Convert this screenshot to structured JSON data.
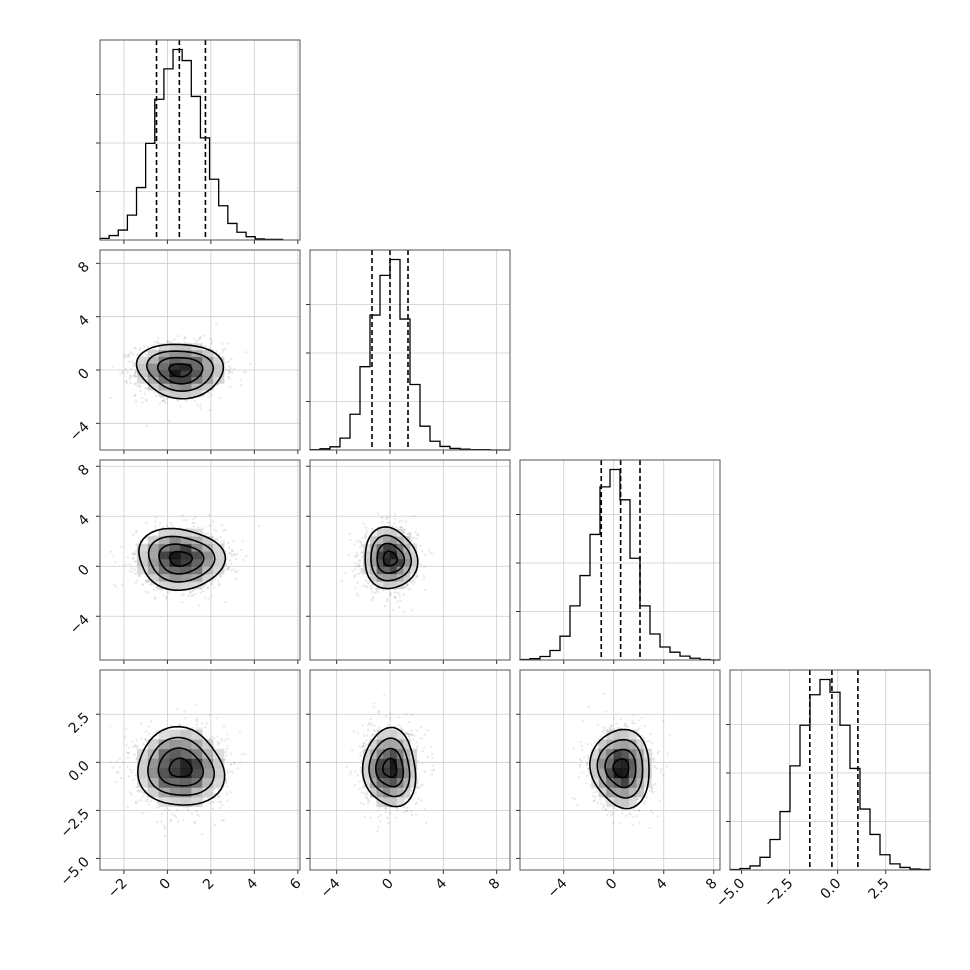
{
  "chart_data": {
    "type": "corner",
    "layout": "lower-triangle 4x4",
    "grid": true,
    "colors": {
      "line": "#000000",
      "density": "#000000",
      "samples": "#555555"
    },
    "parameters": [
      {
        "mean": 0.6,
        "std": 1.0
      },
      {
        "mean": 0.0,
        "std": 1.0
      },
      {
        "mean": 0.6,
        "std": 1.2
      },
      {
        "mean": -0.3,
        "std": 1.0
      }
    ],
    "axis_ranges": [
      [
        -3.1,
        6.1
      ],
      [
        -6.0,
        9.0
      ],
      [
        -7.5,
        8.5
      ],
      [
        -5.6,
        4.8
      ]
    ],
    "ticks": [
      {
        "values": [
          -2,
          0,
          2,
          4,
          6
        ],
        "labels": [
          "−2",
          "0",
          "2",
          "4",
          "6"
        ]
      },
      {
        "values": [
          -4,
          0,
          4,
          8
        ],
        "labels": [
          "−4",
          "0",
          "4",
          "8"
        ]
      },
      {
        "values": [
          -4,
          0,
          4,
          8
        ],
        "labels": [
          "−4",
          "0",
          "4",
          "8"
        ]
      },
      {
        "values": [
          -5.0,
          -2.5,
          0.0,
          2.5
        ],
        "labels": [
          "−5.0",
          "−2.5",
          "0.0",
          "2.5"
        ]
      }
    ],
    "quantiles": [
      [
        -0.5,
        0.55,
        1.75
      ],
      [
        -1.35,
        0.0,
        1.35
      ],
      [
        -1.0,
        0.55,
        2.1
      ],
      [
        -1.45,
        -0.3,
        1.05
      ]
    ],
    "histograms": [
      {
        "bins": [
          -3.1,
          -2.68,
          -2.26,
          -1.84,
          -1.42,
          -1.0,
          -0.58,
          -0.16,
          0.26,
          0.68,
          1.1,
          1.52,
          1.94,
          2.36,
          2.78,
          3.2,
          3.62,
          4.04,
          4.46,
          4.88,
          5.3
        ],
        "counts": [
          3,
          8,
          18,
          45,
          95,
          175,
          255,
          310,
          345,
          325,
          260,
          185,
          110,
          62,
          30,
          14,
          6,
          2,
          1,
          1
        ]
      },
      {
        "bins": [
          -6.0,
          -5.25,
          -4.5,
          -3.75,
          -3.0,
          -2.25,
          -1.5,
          -0.75,
          0.0,
          0.75,
          1.5,
          2.25,
          3.0,
          3.75,
          4.5,
          5.25,
          6.0,
          6.75,
          7.5,
          8.25,
          9.0
        ],
        "counts": [
          1,
          3,
          8,
          30,
          90,
          210,
          340,
          440,
          480,
          330,
          165,
          60,
          22,
          9,
          4,
          2,
          1,
          1,
          0,
          0
        ]
      },
      {
        "bins": [
          -7.5,
          -6.7,
          -5.9,
          -5.1,
          -4.3,
          -3.5,
          -2.7,
          -1.9,
          -1.1,
          -0.3,
          0.5,
          1.3,
          2.1,
          2.9,
          3.7,
          4.5,
          5.3,
          6.1,
          6.9,
          7.7,
          8.5
        ],
        "counts": [
          1,
          3,
          8,
          22,
          55,
          125,
          195,
          290,
          400,
          440,
          370,
          235,
          125,
          60,
          30,
          18,
          9,
          4,
          1,
          0
        ]
      },
      {
        "bins": [
          -5.6,
          -5.08,
          -4.56,
          -4.04,
          -3.52,
          -3.0,
          -2.48,
          -1.96,
          -1.44,
          -0.92,
          -0.4,
          0.12,
          0.64,
          1.16,
          1.68,
          2.2,
          2.72,
          3.24,
          3.76,
          4.28,
          4.8
        ],
        "counts": [
          1,
          3,
          8,
          25,
          60,
          115,
          205,
          285,
          345,
          375,
          350,
          285,
          200,
          120,
          70,
          30,
          12,
          5,
          2,
          1
        ]
      }
    ],
    "pairs": [
      {
        "x": 0,
        "y": 1,
        "center": [
          0.6,
          0.0
        ],
        "spread": [
          1.0,
          1.0
        ]
      },
      {
        "x": 0,
        "y": 2,
        "center": [
          0.6,
          0.6
        ],
        "spread": [
          1.0,
          1.2
        ]
      },
      {
        "x": 1,
        "y": 2,
        "center": [
          0.0,
          0.6
        ],
        "spread": [
          1.0,
          1.2
        ]
      },
      {
        "x": 0,
        "y": 3,
        "center": [
          0.6,
          -0.3
        ],
        "spread": [
          1.0,
          1.0
        ]
      },
      {
        "x": 1,
        "y": 3,
        "center": [
          0.0,
          -0.3
        ],
        "spread": [
          1.0,
          1.0
        ]
      },
      {
        "x": 2,
        "y": 3,
        "center": [
          0.6,
          -0.3
        ],
        "spread": [
          1.2,
          1.0
        ]
      }
    ],
    "contour_levels_sigma": [
      0.5,
      1.0,
      1.5,
      2.0
    ]
  }
}
